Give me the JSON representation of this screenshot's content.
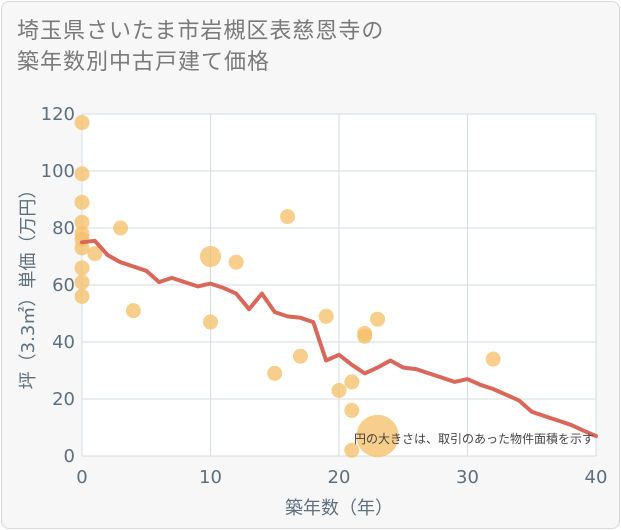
{
  "title_lines": [
    "埼玉県さいたま市岩槻区表慈恩寺の",
    "築年数別中古戸建て価格"
  ],
  "chart_data": {
    "type": "scatter",
    "xlabel": "築年数（年）",
    "ylabel": "坪（3.3㎡）単価（万円）",
    "xlim": [
      0,
      40
    ],
    "ylim": [
      0,
      120
    ],
    "xticks": [
      0,
      10,
      20,
      30,
      40
    ],
    "yticks": [
      0,
      20,
      40,
      60,
      80,
      100,
      120
    ],
    "grid": true,
    "note": "円の大きさは、取引のあった物件面積を示す",
    "colors": {
      "bubble": "#f5c06a",
      "line": "#d9685a",
      "plot_bg": "#ffffff",
      "grid": "#d6dde3"
    },
    "series": [
      {
        "type": "scatter",
        "points": [
          {
            "x": 0,
            "y": 117,
            "size": 1
          },
          {
            "x": 0,
            "y": 99,
            "size": 1
          },
          {
            "x": 0,
            "y": 89,
            "size": 1
          },
          {
            "x": 0,
            "y": 82,
            "size": 1
          },
          {
            "x": 0,
            "y": 78,
            "size": 1
          },
          {
            "x": 0,
            "y": 76,
            "size": 1
          },
          {
            "x": 0,
            "y": 73,
            "size": 1
          },
          {
            "x": 0,
            "y": 66,
            "size": 1
          },
          {
            "x": 0,
            "y": 61,
            "size": 1
          },
          {
            "x": 0,
            "y": 56,
            "size": 1
          },
          {
            "x": 1,
            "y": 71,
            "size": 1
          },
          {
            "x": 3,
            "y": 80,
            "size": 1
          },
          {
            "x": 4,
            "y": 51,
            "size": 1
          },
          {
            "x": 10,
            "y": 70,
            "size": 2
          },
          {
            "x": 10,
            "y": 47,
            "size": 1
          },
          {
            "x": 12,
            "y": 68,
            "size": 1
          },
          {
            "x": 15,
            "y": 29,
            "size": 1
          },
          {
            "x": 16,
            "y": 84,
            "size": 1
          },
          {
            "x": 17,
            "y": 35,
            "size": 1
          },
          {
            "x": 19,
            "y": 49,
            "size": 1
          },
          {
            "x": 20,
            "y": 23,
            "size": 1
          },
          {
            "x": 21,
            "y": 26,
            "size": 1
          },
          {
            "x": 21,
            "y": 16,
            "size": 1
          },
          {
            "x": 21,
            "y": 2,
            "size": 1
          },
          {
            "x": 22,
            "y": 43,
            "size": 1
          },
          {
            "x": 22,
            "y": 42,
            "size": 1
          },
          {
            "x": 23,
            "y": 48,
            "size": 1
          },
          {
            "x": 23,
            "y": 7,
            "size": 8
          },
          {
            "x": 32,
            "y": 34,
            "size": 1
          }
        ]
      },
      {
        "type": "line",
        "x": [
          0,
          1,
          2,
          3,
          4,
          5,
          6,
          7,
          8,
          9,
          10,
          11,
          12,
          13,
          14,
          15,
          16,
          17,
          18,
          19,
          20,
          21,
          22,
          23,
          24,
          25,
          26,
          27,
          28,
          29,
          30,
          31,
          32,
          33,
          34,
          35,
          36,
          37,
          38,
          39,
          40
        ],
        "y": [
          75,
          75.5,
          70.5,
          68,
          66.5,
          65,
          61,
          62.5,
          61,
          59.5,
          60.5,
          59,
          57,
          51.5,
          57,
          50.5,
          49,
          48.5,
          47,
          33.5,
          35.5,
          32,
          29,
          31,
          33.5,
          31,
          30.5,
          29,
          27.5,
          26,
          27,
          25,
          23.5,
          21.5,
          19.5,
          15.5,
          14,
          12.5,
          11,
          9,
          7
        ]
      }
    ]
  }
}
